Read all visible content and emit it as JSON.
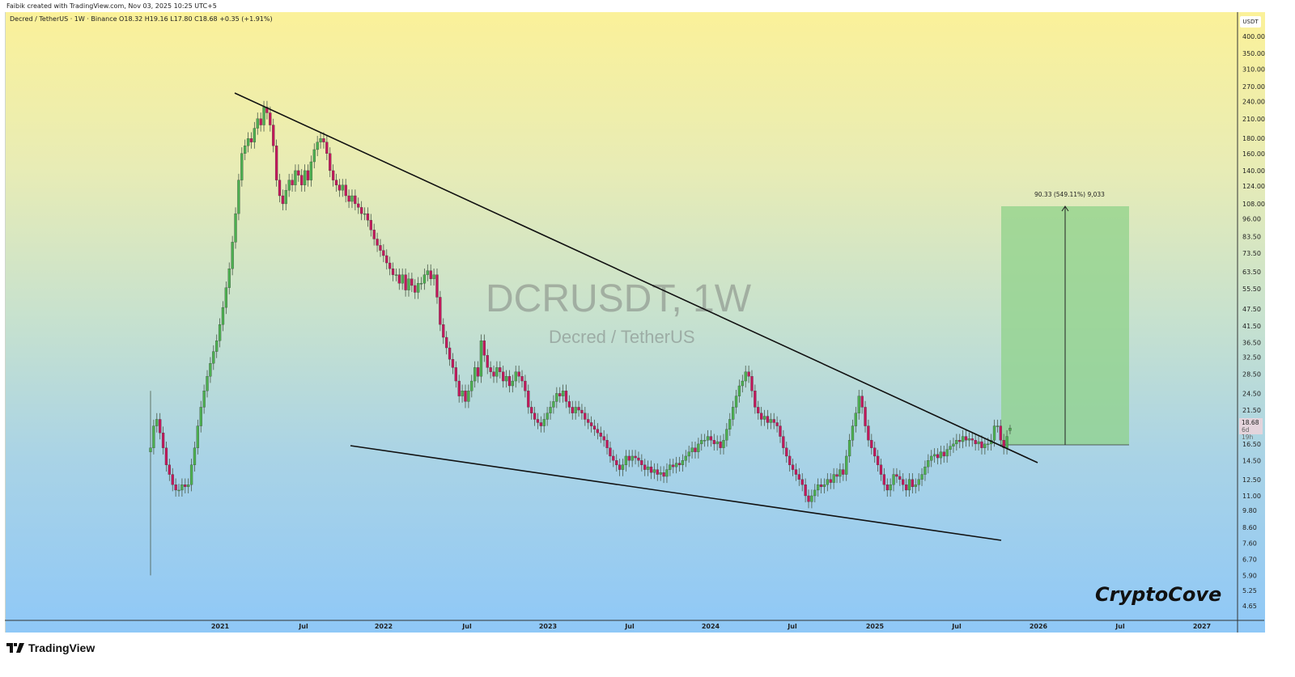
{
  "header": {
    "credit": "Faibik created with TradingView.com, Nov 03, 2025 10:25 UTC+5"
  },
  "legend": {
    "text": "Decred / TetherUS · 1W · Binance  O18.32  H19.16  L17.80  C18.68  +0.35 (+1.91%)"
  },
  "watermark": {
    "symbol": "DCRUSDT, 1W",
    "name": "Decred / TetherUS"
  },
  "signature": "CryptoCove",
  "brand": "TradingView",
  "measure": {
    "label": "90.33 (549.11%) 9,033",
    "fill": "#8fd18a"
  },
  "price_label": {
    "price": "18.68",
    "countdown": "6d 19h"
  },
  "colors": {
    "up": "#4caf50",
    "down": "#c2185b",
    "bg_top": "#fbf199",
    "bg_bottom": "#8fc8f7"
  },
  "chart_data": {
    "type": "candlestick",
    "interval": "1W",
    "scale": "log",
    "unit": "USDT",
    "y_ticks": [
      "400.00",
      "350.00",
      "310.00",
      "270.00",
      "240.00",
      "210.00",
      "180.00",
      "160.00",
      "140.00",
      "124.00",
      "108.00",
      "96.00",
      "83.50",
      "73.50",
      "63.50",
      "55.50",
      "47.50",
      "41.50",
      "36.50",
      "32.50",
      "28.50",
      "24.50",
      "21.50",
      "16.50",
      "14.50",
      "12.50",
      "11.00",
      "9.80",
      "8.60",
      "7.60",
      "6.70",
      "5.90",
      "5.25",
      "4.65"
    ],
    "x_ticks": [
      "2021",
      "Jul",
      "2022",
      "Jul",
      "2023",
      "Jul",
      "2024",
      "Jul",
      "2025",
      "Jul",
      "2026",
      "Jul",
      "2027"
    ],
    "first_candle": {
      "open": 15.5,
      "high": 25,
      "low": 5.9,
      "close": 16
    },
    "last_candle": {
      "open": 18.32,
      "high": 19.16,
      "low": 17.8,
      "close": 18.68
    },
    "closes": [
      16,
      19,
      20,
      18,
      16,
      14,
      13,
      12,
      11.5,
      11.5,
      12,
      11.8,
      12,
      14,
      16,
      19,
      22,
      25,
      28,
      31,
      34,
      37,
      42,
      48,
      56,
      65,
      80,
      100,
      130,
      160,
      170,
      180,
      175,
      195,
      210,
      200,
      230,
      220,
      200,
      170,
      130,
      115,
      108,
      120,
      130,
      125,
      140,
      135,
      125,
      140,
      130,
      150,
      165,
      175,
      180,
      175,
      160,
      140,
      130,
      125,
      120,
      125,
      115,
      110,
      115,
      108,
      105,
      100,
      100,
      95,
      88,
      82,
      78,
      75,
      72,
      68,
      65,
      62,
      62,
      58,
      62,
      55,
      60,
      57,
      54,
      58,
      58,
      62,
      64,
      60,
      62,
      52,
      42,
      38,
      35,
      32,
      30,
      27,
      24,
      25,
      23,
      25,
      27,
      30,
      28,
      37,
      33,
      30,
      29,
      28,
      30,
      29,
      27,
      28,
      26,
      27,
      29,
      28,
      27,
      25,
      22,
      21,
      20,
      19.5,
      19,
      20,
      21,
      22,
      23,
      24.5,
      24,
      25,
      23,
      22,
      21,
      22,
      21.5,
      21,
      20,
      19.5,
      19,
      18.5,
      18,
      17.5,
      17,
      16,
      15,
      14.5,
      14,
      13.5,
      14,
      15,
      14.5,
      15,
      14.8,
      14.5,
      14,
      13.5,
      13.8,
      13.2,
      13.5,
      13,
      13.2,
      12.8,
      13.5,
      14,
      13.8,
      14.2,
      14,
      14.5,
      15,
      15.5,
      16,
      15.5,
      16.5,
      17,
      17,
      17.5,
      17,
      16.5,
      16.8,
      16,
      17,
      18.5,
      20,
      22,
      24,
      26,
      27,
      29,
      28,
      25,
      22,
      21,
      20,
      20.5,
      19.5,
      20,
      19.5,
      19,
      17.5,
      16,
      15,
      14,
      13.5,
      13,
      12.5,
      12,
      11,
      10.5,
      11,
      11.5,
      12,
      11.8,
      12,
      12.5,
      12.2,
      13,
      12.8,
      13.5,
      13,
      15,
      17,
      19,
      21,
      24,
      22,
      19,
      17,
      16,
      15,
      14,
      13,
      12,
      11.5,
      12,
      13,
      12.8,
      12.5,
      12,
      11.5,
      12.5,
      11.8,
      12,
      12.5,
      13,
      13.8,
      14.5,
      15,
      15.2,
      14.8,
      15.5,
      15,
      15.8,
      16.2,
      16.5,
      17,
      16.8,
      17.5,
      17,
      17.2,
      17,
      16.5,
      16.8,
      16,
      16.5,
      16.5,
      17,
      19,
      19,
      17,
      16,
      17.5,
      18.68
    ]
  }
}
